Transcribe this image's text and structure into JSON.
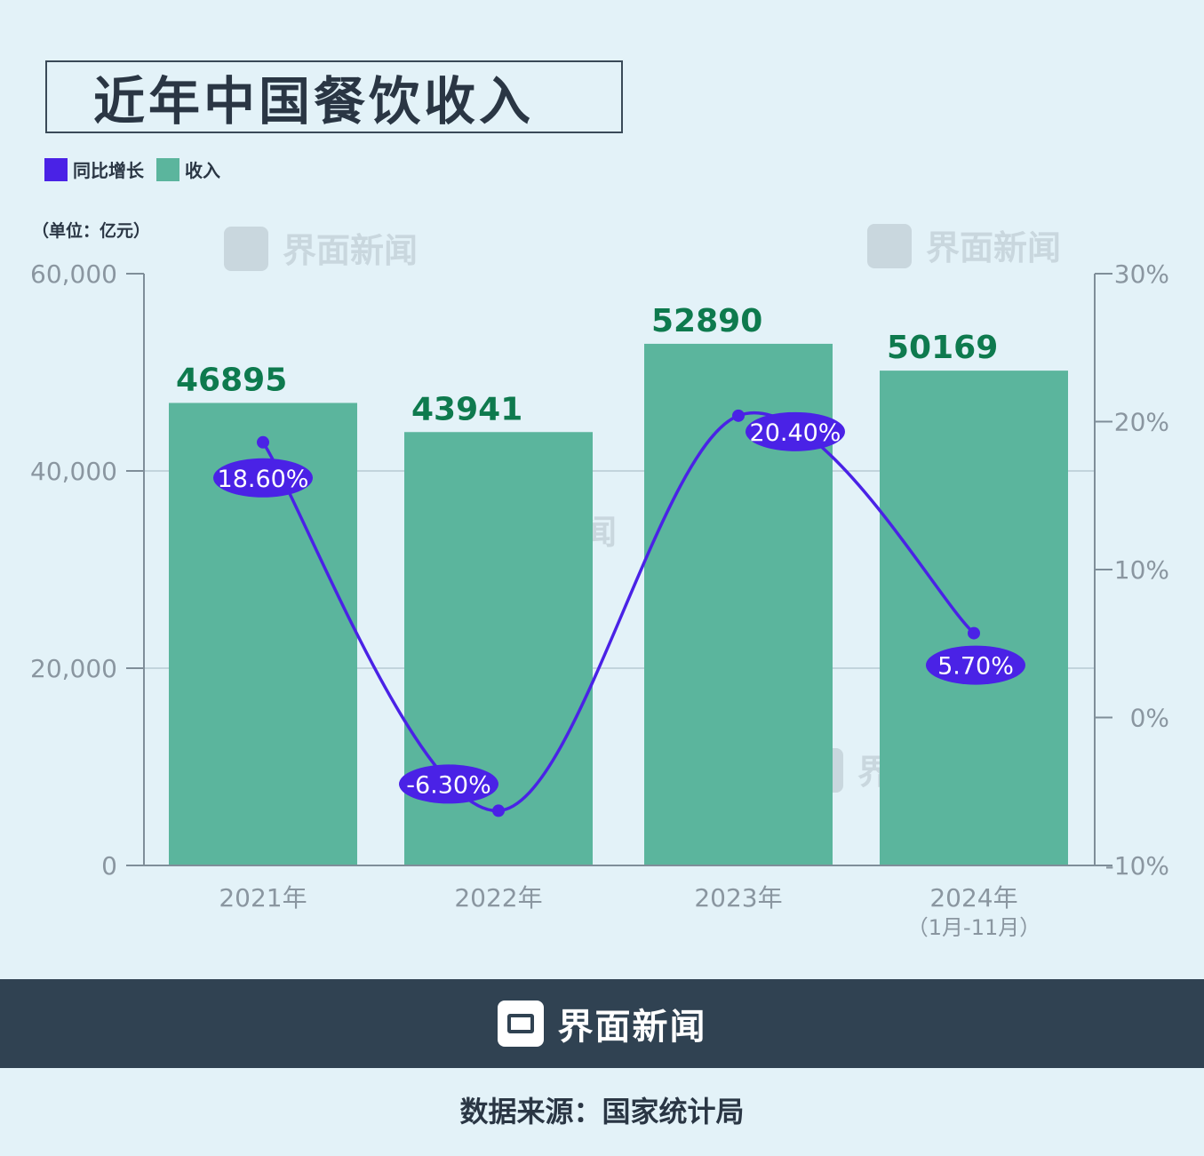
{
  "title": "近年中国餐饮收入",
  "legend": [
    {
      "label": "同比增长",
      "color": "#4a22e6"
    },
    {
      "label": "收入",
      "color": "#5bb59d"
    }
  ],
  "unit": "（单位：亿元）",
  "watermark": "界面新闻",
  "footer": {
    "brand": "界面新闻"
  },
  "source": "数据来源：国家统计局",
  "chart_data": {
    "type": "bar",
    "categories": [
      "2021年",
      "2022年",
      "2023年",
      "2024年"
    ],
    "category_sublabels": [
      "",
      "",
      "",
      "（1月-11月）"
    ],
    "series": [
      {
        "name": "收入",
        "type": "bar",
        "axis": "left",
        "values": [
          46895,
          43941,
          52890,
          50169
        ],
        "labels": [
          "46895",
          "43941",
          "52890",
          "50169"
        ],
        "color": "#5bb59d"
      },
      {
        "name": "同比增长",
        "type": "line",
        "axis": "right",
        "values": [
          18.6,
          -6.3,
          20.4,
          5.7
        ],
        "labels": [
          "18.60%",
          "-6.30%",
          "20.40%",
          "5.70%"
        ],
        "color": "#4a22e6"
      }
    ],
    "left_axis": {
      "ylim": [
        0,
        60000
      ],
      "ticks": [
        "0",
        "20,000",
        "40,000",
        "60,000"
      ]
    },
    "right_axis": {
      "ylim": [
        -10,
        30
      ],
      "ticks": [
        "-10%",
        "0%",
        "10%",
        "20%",
        "30%"
      ]
    },
    "grid": true,
    "legend_position": "top-left"
  }
}
